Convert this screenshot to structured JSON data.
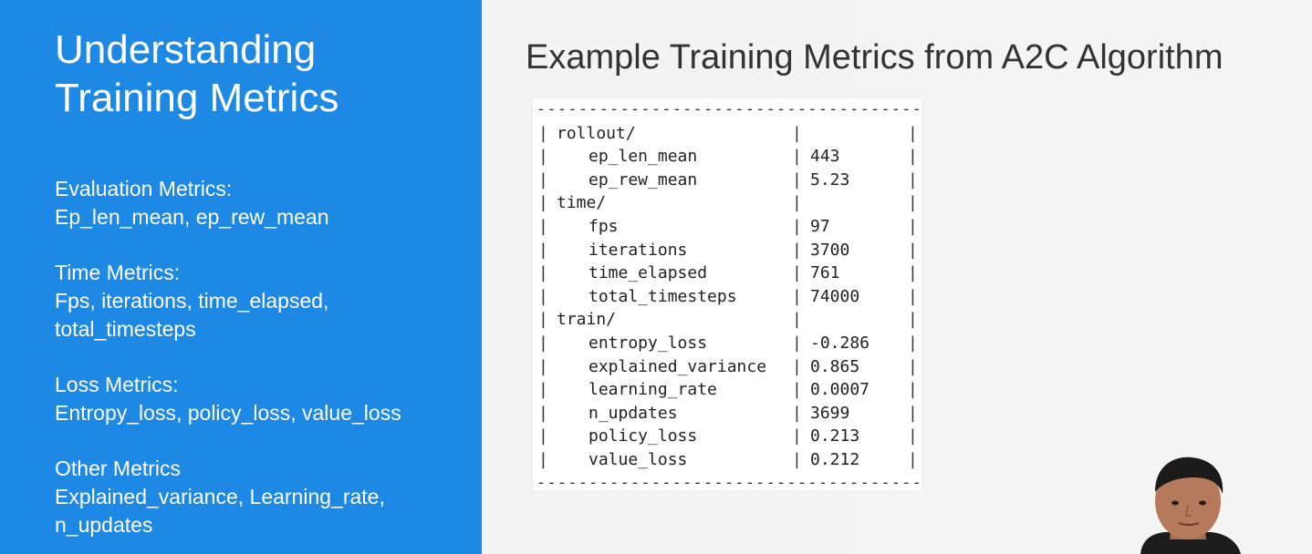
{
  "left": {
    "title_line1": "Understanding",
    "title_line2": "Training Metrics",
    "sections": [
      {
        "heading": "Evaluation Metrics:",
        "lines": [
          "Ep_len_mean, ep_rew_mean"
        ]
      },
      {
        "heading": "Time Metrics:",
        "lines": [
          "Fps, iterations, time_elapsed,",
          "total_timesteps"
        ]
      },
      {
        "heading": "Loss Metrics:",
        "lines": [
          "Entropy_loss, policy_loss, value_loss"
        ]
      },
      {
        "heading": "Other Metrics",
        "lines": [
          "Explained_variance, Learning_rate,",
          "n_updates"
        ]
      }
    ]
  },
  "right": {
    "title": "Example Training Metrics from A2C Algorithm",
    "separator": "-------------------------------------",
    "bar": "|",
    "groups": [
      {
        "name": "rollout/",
        "items": [
          {
            "key": "ep_len_mean",
            "value": "443"
          },
          {
            "key": "ep_rew_mean",
            "value": "5.23"
          }
        ]
      },
      {
        "name": "time/",
        "items": [
          {
            "key": "fps",
            "value": "97"
          },
          {
            "key": "iterations",
            "value": "3700"
          },
          {
            "key": "time_elapsed",
            "value": "761"
          },
          {
            "key": "total_timesteps",
            "value": "74000"
          }
        ]
      },
      {
        "name": "train/",
        "items": [
          {
            "key": "entropy_loss",
            "value": "-0.286"
          },
          {
            "key": "explained_variance",
            "value": "0.865"
          },
          {
            "key": "learning_rate",
            "value": "0.0007"
          },
          {
            "key": "n_updates",
            "value": "3699"
          },
          {
            "key": "policy_loss",
            "value": "0.213"
          },
          {
            "key": "value_loss",
            "value": "0.212"
          }
        ]
      }
    ]
  },
  "colors": {
    "accent_blue": "#1e88e5",
    "background": "#f2f2f2",
    "title_text": "#333333"
  }
}
